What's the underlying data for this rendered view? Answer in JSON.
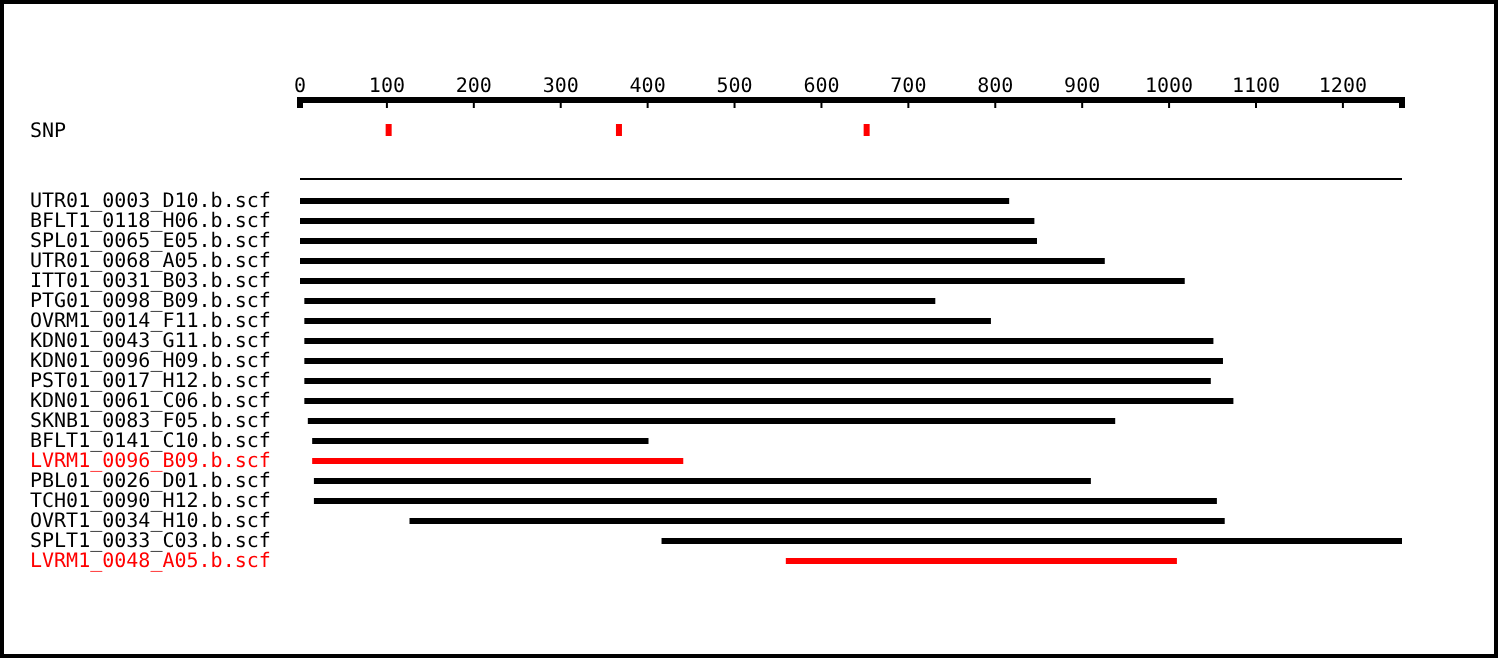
{
  "chart_data": {
    "type": "bar",
    "orientation": "horizontal",
    "xlim": [
      0,
      1268
    ],
    "xticks": [
      0,
      100,
      200,
      300,
      400,
      500,
      600,
      700,
      800,
      900,
      1000,
      1100,
      1200
    ],
    "categories": [
      "SNP",
      null,
      "UTR01_0003_D10.b.scf",
      "BFLT1_0118_H06.b.scf",
      "SPL01_0065_E05.b.scf",
      "UTR01_0068_A05.b.scf",
      "ITT01_0031_B03.b.scf",
      "PTG01_0098_B09.b.scf",
      "OVRM1_0014_F11.b.scf",
      "KDN01_0043_G11.b.scf",
      "KDN01_0096_H09.b.scf",
      "PST01_0017_H12.b.scf",
      "KDN01_0061_C06.b.scf",
      "SKNB1_0083_F05.b.scf",
      "BFLT1_0141_C10.b.scf",
      "LVRM1_0096_B09.b.scf",
      "PBL01_0026_D01.b.scf",
      "TCH01_0090_H12.b.scf",
      "OVRT1_0034_H10.b.scf",
      "SPLT1_0033_C03.b.scf",
      "LVRM1_0048_A05.b.scf"
    ],
    "series": [
      {
        "base": [
          null,
          0,
          0,
          0,
          0,
          0,
          0,
          5,
          5,
          5,
          5,
          5,
          5,
          9,
          14,
          14,
          16,
          16,
          126,
          416,
          559
        ],
        "values": [
          null,
          1268,
          816,
          845,
          848,
          926,
          1018,
          726,
          790,
          1046,
          1057,
          1043,
          1069,
          929,
          387,
          427,
          894,
          1039,
          938,
          852,
          450
        ],
        "colors": [
          "#000000",
          "#000000",
          "#000000",
          "#000000",
          "#000000",
          "#000000",
          "#000000",
          "#000000",
          "#000000",
          "#000000",
          "#000000",
          "#000000",
          "#000000",
          "#000000",
          "#000000",
          "#ff0000",
          "#000000",
          "#000000",
          "#000000",
          "#000000",
          "#ff0000"
        ]
      },
      {
        "type": "scatter",
        "x": [
          "SNP",
          "SNP",
          "SNP"
        ],
        "values": [
          102,
          367,
          652
        ],
        "color": "#ff0000",
        "marker": "square"
      }
    ]
  }
}
